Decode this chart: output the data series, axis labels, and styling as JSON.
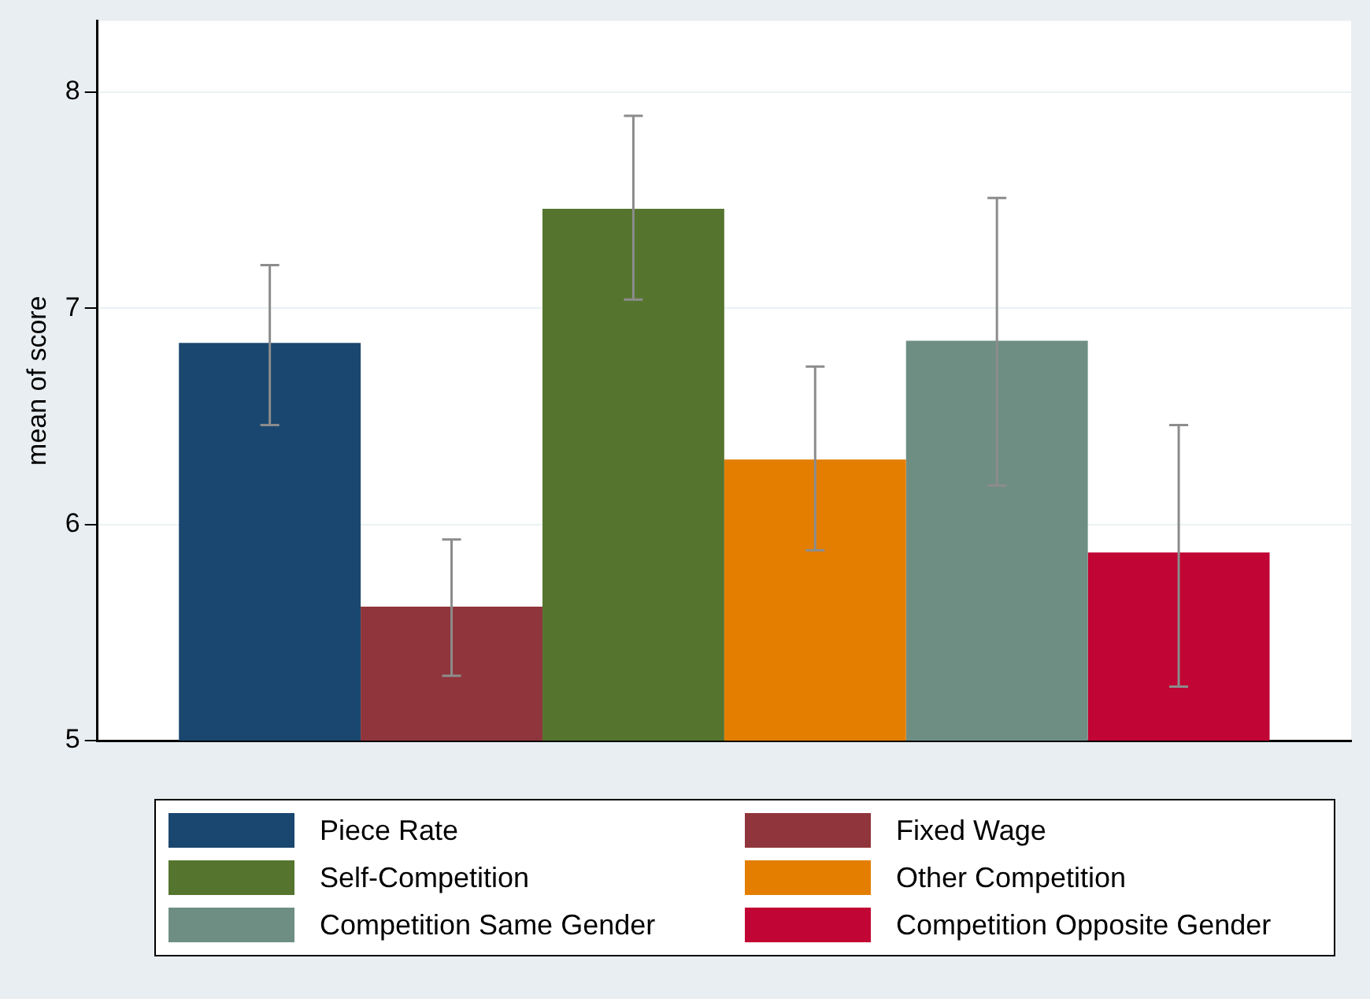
{
  "chart_data": {
    "type": "bar",
    "ylabel": "mean of score",
    "categories": [
      null
    ],
    "series": [
      {
        "name": "Piece Rate",
        "color": "#1a476f",
        "values": [
          6.84
        ],
        "errors": [
          [
            6.46,
            7.2
          ]
        ]
      },
      {
        "name": "Fixed Wage",
        "color": "#90353b",
        "values": [
          5.62
        ],
        "errors": [
          [
            5.3,
            5.93
          ]
        ]
      },
      {
        "name": "Self-Competition",
        "color": "#55752f",
        "values": [
          7.46
        ],
        "errors": [
          [
            7.04,
            7.89
          ]
        ]
      },
      {
        "name": "Other Competition",
        "color": "#e37e00",
        "values": [
          6.3
        ],
        "errors": [
          [
            5.88,
            6.73
          ]
        ]
      },
      {
        "name": "Competition Same Gender",
        "color": "#6e8e84",
        "values": [
          6.85
        ],
        "errors": [
          [
            6.18,
            7.51
          ]
        ]
      },
      {
        "name": "Competition Opposite Gender",
        "color": "#c10534",
        "values": [
          5.87
        ],
        "errors": [
          [
            5.25,
            6.46
          ]
        ]
      }
    ],
    "ylim": [
      5,
      8.33
    ],
    "yticks": [
      5,
      6,
      7,
      8
    ],
    "grid": "y",
    "legend": "bottom"
  }
}
